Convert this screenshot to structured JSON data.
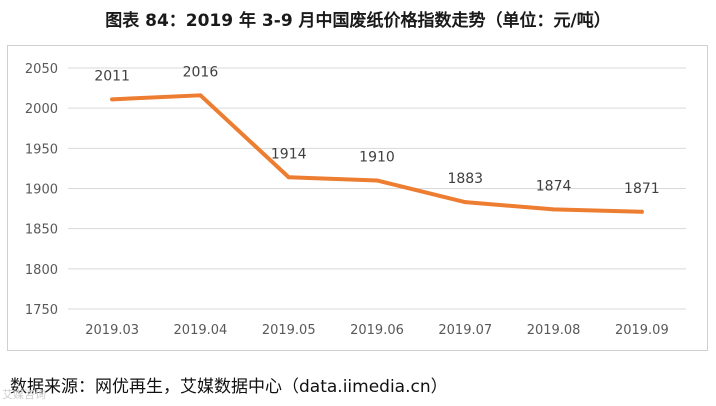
{
  "title": "图表 84：2019 年 3-9 月中国废纸价格指数走势（单位：元/吨）",
  "source": "数据来源：网优再生，艾媒数据中心（data.iimedia.cn）",
  "watermark": "艾媒咨询",
  "colors": {
    "line": "#ED7D31",
    "grid": "#d9d9d9",
    "axis_text": "#595959",
    "label_text": "#404040"
  },
  "chart_data": {
    "type": "line",
    "title": "",
    "xlabel": "",
    "ylabel": "",
    "categories": [
      "2019.03",
      "2019.04",
      "2019.05",
      "2019.06",
      "2019.07",
      "2019.08",
      "2019.09"
    ],
    "series": [
      {
        "values": [
          2011,
          2016,
          1914,
          1910,
          1883,
          1874,
          1871
        ]
      }
    ],
    "ylim": [
      1750,
      2050
    ],
    "yticks": [
      1750,
      1800,
      1850,
      1900,
      1950,
      2000,
      2050
    ],
    "grid": "horizontal",
    "legend": "none",
    "data_labels": true
  }
}
